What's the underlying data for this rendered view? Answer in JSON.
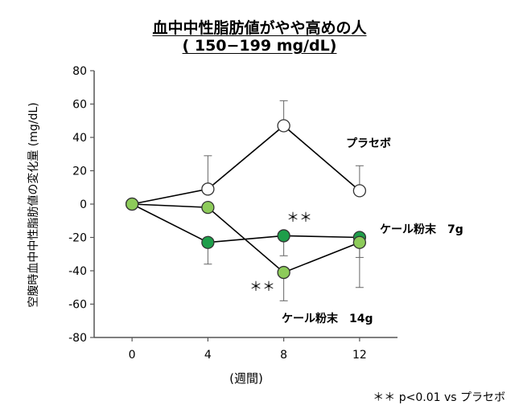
{
  "chart_data": {
    "type": "line",
    "title": "血中中性脂肪値がやや高めの人",
    "subtitle": "( 150−199 mg/dL)",
    "xlabel": "(週間)",
    "ylabel": "空腹時血中中性脂肪値の変化量 (mg/dL)",
    "x": [
      0,
      4,
      8,
      12
    ],
    "x_tick_labels": [
      "0",
      "4",
      "8",
      "12"
    ],
    "xlim": [
      -2,
      14
    ],
    "ylim": [
      -80,
      80
    ],
    "y_ticks": [
      -80,
      -60,
      -40,
      -20,
      0,
      20,
      40,
      60,
      80
    ],
    "y_tick_labels": [
      "-80",
      "-60",
      "-40",
      "-20",
      "0",
      "20",
      "40",
      "60",
      "80"
    ],
    "grid": false,
    "series": [
      {
        "name": "プラセボ",
        "values": [
          0,
          9,
          47,
          8
        ],
        "err_upper": [
          0,
          20,
          15,
          15
        ],
        "err_lower": [
          0,
          0,
          0,
          0
        ],
        "marker_color": "#ffffff",
        "edge_color": "#333333"
      },
      {
        "name": "ケール粉末　7g",
        "values": [
          0,
          -23,
          -19,
          -20
        ],
        "err_upper": [
          0,
          0,
          0,
          0
        ],
        "err_lower": [
          0,
          13,
          12,
          12
        ],
        "marker_color": "#1e9e4a",
        "edge_color": "#333333"
      },
      {
        "name": "ケール粉末　14g",
        "values": [
          0,
          -2,
          -41,
          -23
        ],
        "err_upper": [
          0,
          0,
          0,
          0
        ],
        "err_lower": [
          0,
          0,
          17,
          27
        ],
        "marker_color": "#8dcb5a",
        "edge_color": "#333333"
      }
    ],
    "annotations": [
      {
        "text": "＊＊",
        "x": 8,
        "y": -19
      },
      {
        "text": "＊＊",
        "x": 8,
        "y": -41
      }
    ],
    "footnote": "＊＊ p<0.01 vs プラセボ"
  }
}
